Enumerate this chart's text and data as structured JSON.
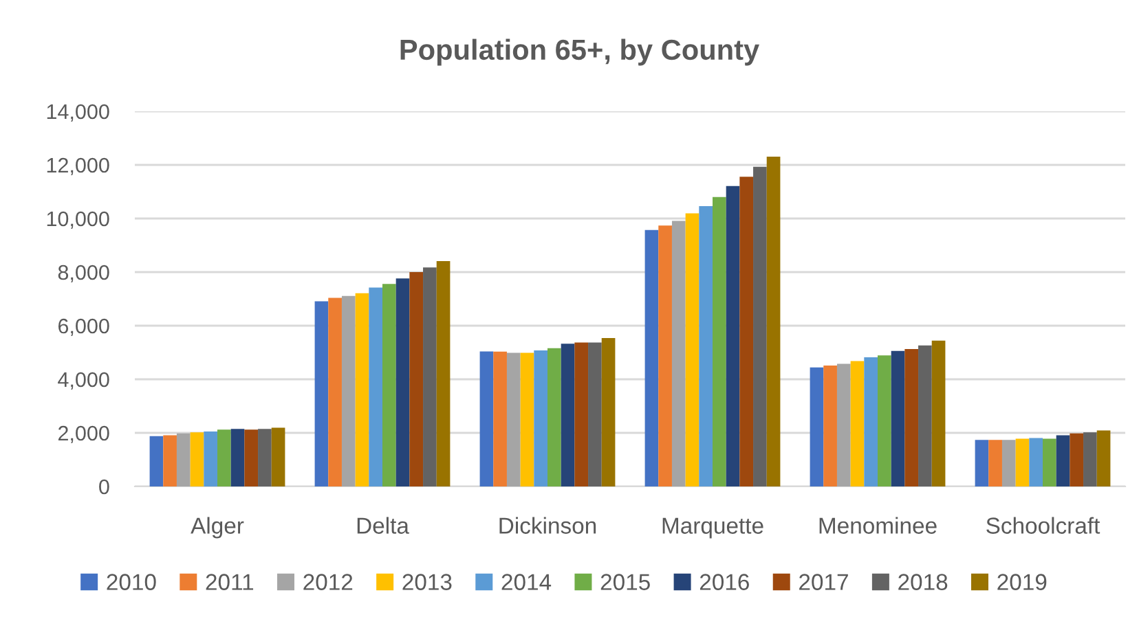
{
  "chart_data": {
    "type": "bar",
    "title": "Population 65+, by County",
    "categories": [
      "Alger",
      "Delta",
      "Dickinson",
      "Marquette",
      "Menominee",
      "Schoolcraft"
    ],
    "series": [
      {
        "name": "2010",
        "color": "#4472c4",
        "values": [
          1880,
          6910,
          5040,
          9570,
          4440,
          1740
        ]
      },
      {
        "name": "2011",
        "color": "#ed7d31",
        "values": [
          1910,
          7040,
          5030,
          9740,
          4510,
          1740
        ]
      },
      {
        "name": "2012",
        "color": "#a5a5a5",
        "values": [
          1980,
          7110,
          4990,
          9910,
          4580,
          1740
        ]
      },
      {
        "name": "2013",
        "color": "#ffc000",
        "values": [
          2020,
          7210,
          4990,
          10190,
          4680,
          1780
        ]
      },
      {
        "name": "2014",
        "color": "#5b9bd5",
        "values": [
          2050,
          7420,
          5080,
          10460,
          4820,
          1810
        ]
      },
      {
        "name": "2015",
        "color": "#70ad47",
        "values": [
          2120,
          7560,
          5160,
          10800,
          4890,
          1780
        ]
      },
      {
        "name": "2016",
        "color": "#264478",
        "values": [
          2150,
          7760,
          5330,
          11210,
          5060,
          1910
        ]
      },
      {
        "name": "2017",
        "color": "#9e480e",
        "values": [
          2120,
          8000,
          5370,
          11560,
          5130,
          1980
        ]
      },
      {
        "name": "2018",
        "color": "#636363",
        "values": [
          2150,
          8170,
          5370,
          11930,
          5260,
          2020
        ]
      },
      {
        "name": "2019",
        "color": "#997300",
        "values": [
          2190,
          8410,
          5540,
          12310,
          5440,
          2090
        ]
      }
    ],
    "ylim": [
      0,
      14000
    ],
    "yticks": [
      0,
      {
        "value": 2000,
        "label": "2,000"
      },
      {
        "value": 4000,
        "label": "4,000"
      },
      {
        "value": 6000,
        "label": "6,000"
      },
      {
        "value": 8000,
        "label": "8,000"
      },
      {
        "value": 10000,
        "label": "10,000"
      },
      {
        "value": 12000,
        "label": "12,000"
      },
      {
        "value": 14000,
        "label": "14,000"
      }
    ],
    "grid": "y",
    "legend": "bottom"
  }
}
